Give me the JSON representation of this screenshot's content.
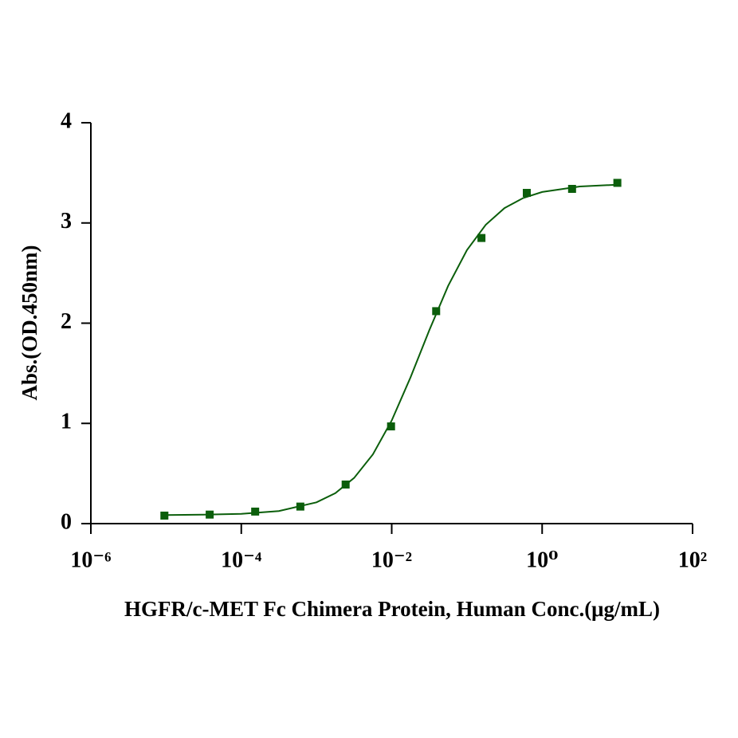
{
  "chart_data": {
    "type": "scatter",
    "x_label": "HGFR/c-MET Fc Chimera Protein, Human Conc.(μg/mL)",
    "y_label": "Abs.(OD.450nm)",
    "x_scale": "log",
    "x": [
      9.5e-06,
      3.8e-05,
      0.000153,
      0.00061,
      0.00244,
      0.0098,
      0.039,
      0.156,
      0.625,
      2.5,
      10
    ],
    "values": [
      0.08,
      0.09,
      0.12,
      0.17,
      0.39,
      0.97,
      2.12,
      2.85,
      3.3,
      3.34,
      3.4
    ],
    "color": "#0b5e0b",
    "fit": {
      "x": [
        1e-05,
        3.16e-05,
        0.0001,
        0.000316,
        0.001,
        0.00178,
        0.00316,
        0.00562,
        0.01,
        0.0178,
        0.0316,
        0.0562,
        0.1,
        0.178,
        0.316,
        0.562,
        1,
        3.16,
        10
      ],
      "values": [
        0.086,
        0.089,
        0.098,
        0.126,
        0.212,
        0.304,
        0.456,
        0.691,
        1.029,
        1.459,
        1.93,
        2.372,
        2.729,
        2.982,
        3.148,
        3.249,
        3.309,
        3.364,
        3.382
      ]
    },
    "xlim": [
      1e-06,
      100
    ],
    "xticks": [
      {
        "value": 1e-06,
        "label": "10⁻⁶"
      },
      {
        "value": 0.0001,
        "label": "10⁻⁴"
      },
      {
        "value": 0.01,
        "label": "10⁻²"
      },
      {
        "value": 1,
        "label": "10⁰"
      },
      {
        "value": 100,
        "label": "10²"
      }
    ],
    "ylim": [
      0,
      4
    ],
    "yticks": [
      0,
      1,
      2,
      3,
      4
    ]
  }
}
